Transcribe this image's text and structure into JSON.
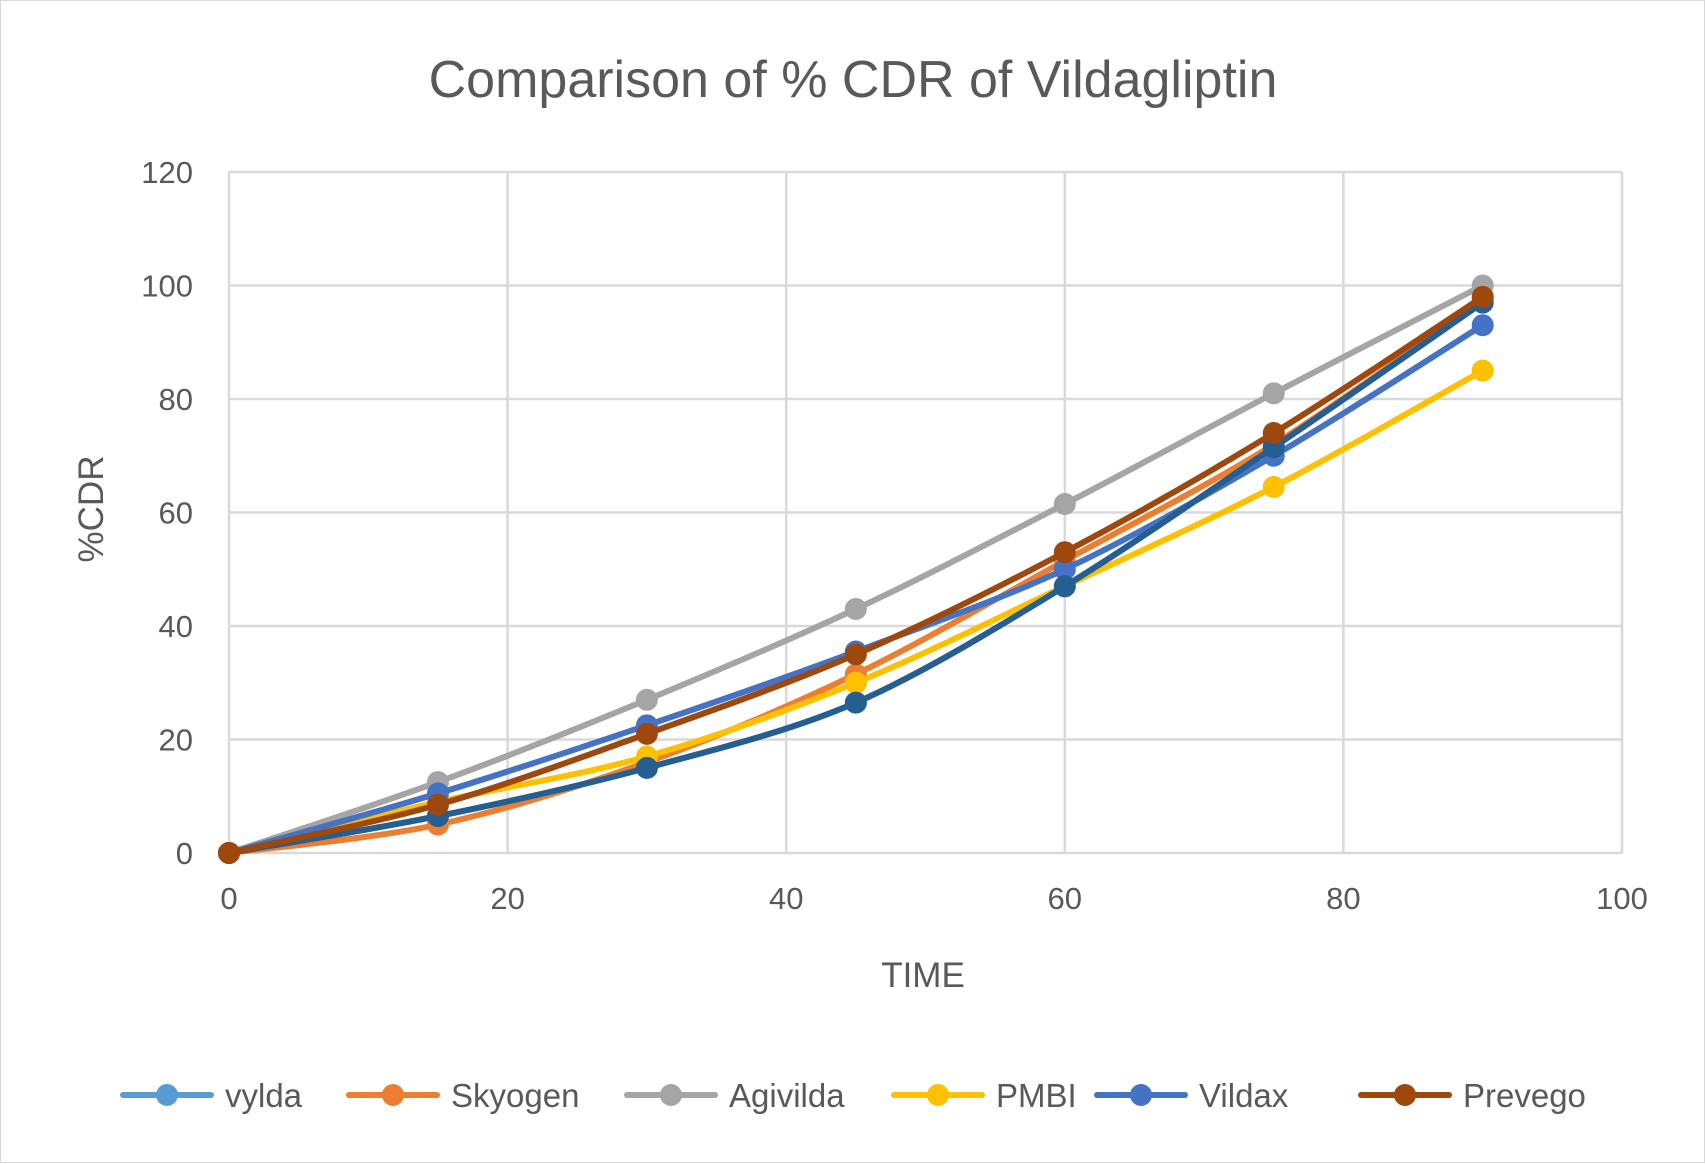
{
  "chart_data": {
    "type": "line",
    "title": "Comparison of % CDR of Vildagliptin",
    "xlabel": "TIME",
    "ylabel": "%CDR",
    "xlim": [
      0,
      100
    ],
    "ylim": [
      0,
      120
    ],
    "xticks": [
      "0",
      "20",
      "40",
      "60",
      "80",
      "100"
    ],
    "yticks": [
      "0",
      "20",
      "40",
      "60",
      "80",
      "100",
      "120"
    ],
    "grid": true,
    "legend_position": "bottom",
    "x": [
      0,
      15,
      30,
      45,
      60,
      75,
      90
    ],
    "series": [
      {
        "name": "vylda",
        "color": "#5B9BD5",
        "values": [
          0,
          6.5,
          15,
          26.5,
          47,
          71.5,
          97
        ]
      },
      {
        "name": "Skyogen",
        "color": "#ED7D31",
        "values": [
          0,
          5,
          16,
          31.5,
          51.5,
          72,
          97.5
        ]
      },
      {
        "name": "Agivilda",
        "color": "#A5A5A5",
        "values": [
          0,
          12.5,
          27,
          43,
          61.5,
          81,
          100
        ]
      },
      {
        "name": "PMBI",
        "color": "#FFC000",
        "values": [
          0,
          9,
          17,
          30,
          47,
          64.5,
          85
        ]
      },
      {
        "name": "Vildax",
        "color": "#4472C4",
        "values": [
          0,
          10.5,
          22.5,
          35.5,
          50,
          70,
          93
        ]
      },
      {
        "name": "Prevego",
        "color": "#9E480E",
        "values": [
          0,
          8.5,
          21,
          35,
          53,
          74,
          98
        ]
      }
    ],
    "extra_line": {
      "color": "#255E91",
      "values": [
        0,
        6.5,
        15,
        26.5,
        47,
        71.5,
        97
      ]
    }
  }
}
